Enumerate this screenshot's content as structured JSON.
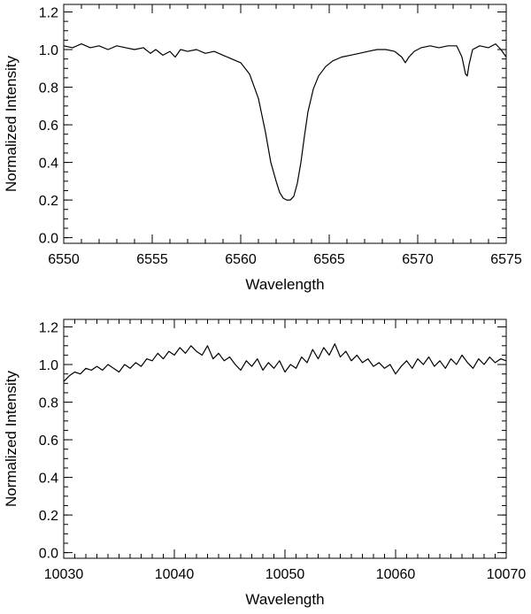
{
  "chart_data": [
    {
      "type": "line",
      "xlabel": "Wavelength",
      "ylabel": "Normalized Intensity",
      "xlim": [
        6550,
        6575
      ],
      "ylim": [
        -0.03,
        1.24
      ],
      "x_ticks": [
        6550,
        6555,
        6560,
        6565,
        6570,
        6575
      ],
      "x_tick_labels": [
        "6550",
        "6555",
        "6560",
        "6565",
        "6570",
        "6575"
      ],
      "x_minor_step": 1,
      "y_ticks": [
        0.0,
        0.2,
        0.4,
        0.6,
        0.8,
        1.0,
        1.2
      ],
      "y_tick_labels": [
        "0.0",
        "0.2",
        "0.4",
        "0.6",
        "0.8",
        "1.0",
        "1.2"
      ],
      "y_minor_step": 0.05,
      "grid": false,
      "series": [
        {
          "x": [
            6550.0,
            6550.5,
            6551.0,
            6551.5,
            6552.0,
            6552.5,
            6553.0,
            6553.5,
            6554.0,
            6554.5,
            6554.9,
            6555.2,
            6555.6,
            6556.0,
            6556.3,
            6556.6,
            6557.0,
            6557.5,
            6558.0,
            6558.5,
            6559.0,
            6559.5,
            6560.0,
            6560.5,
            6561.0,
            6561.4,
            6561.7,
            6562.0,
            6562.2,
            6562.4,
            6562.6,
            6562.8,
            6563.0,
            6563.2,
            6563.4,
            6563.6,
            6563.8,
            6564.1,
            6564.4,
            6564.8,
            6565.2,
            6565.7,
            6566.2,
            6566.7,
            6567.2,
            6567.7,
            6568.2,
            6568.7,
            6569.1,
            6569.3,
            6569.5,
            6569.8,
            6570.2,
            6570.7,
            6571.2,
            6571.7,
            6572.2,
            6572.5,
            6572.7,
            6572.8,
            6572.9,
            6573.1,
            6573.5,
            6574.0,
            6574.4,
            6574.7,
            6575.0
          ],
          "y": [
            1.02,
            1.01,
            1.03,
            1.01,
            1.02,
            1.0,
            1.02,
            1.01,
            1.0,
            1.01,
            0.98,
            1.0,
            0.97,
            0.99,
            0.96,
            1.0,
            0.99,
            1.0,
            0.98,
            0.99,
            0.97,
            0.95,
            0.93,
            0.87,
            0.74,
            0.56,
            0.4,
            0.3,
            0.24,
            0.21,
            0.2,
            0.2,
            0.22,
            0.29,
            0.4,
            0.54,
            0.67,
            0.79,
            0.86,
            0.91,
            0.94,
            0.96,
            0.97,
            0.98,
            0.99,
            1.0,
            1.0,
            0.99,
            0.96,
            0.93,
            0.96,
            0.99,
            1.01,
            1.02,
            1.01,
            1.02,
            1.02,
            0.96,
            0.87,
            0.86,
            0.92,
            1.0,
            1.02,
            1.01,
            1.03,
            1.0,
            0.96
          ]
        }
      ]
    },
    {
      "type": "line",
      "xlabel": "Wavelength",
      "ylabel": "Normalized Intensity",
      "xlim": [
        10030,
        10070
      ],
      "ylim": [
        -0.03,
        1.24
      ],
      "x_ticks": [
        10030,
        10040,
        10050,
        10060,
        10070
      ],
      "x_tick_labels": [
        "10030",
        "10040",
        "10050",
        "10060",
        "10070"
      ],
      "x_minor_step": 1,
      "y_ticks": [
        0.0,
        0.2,
        0.4,
        0.6,
        0.8,
        1.0,
        1.2
      ],
      "y_tick_labels": [
        "0.0",
        "0.2",
        "0.4",
        "0.6",
        "0.8",
        "1.0",
        "1.2"
      ],
      "y_minor_step": 0.05,
      "grid": false,
      "series": [
        {
          "x": [
            10030.0,
            10030.5,
            10031.0,
            10031.5,
            10032.0,
            10032.5,
            10033.0,
            10033.5,
            10034.0,
            10034.5,
            10035.0,
            10035.5,
            10036.0,
            10036.5,
            10037.0,
            10037.5,
            10038.0,
            10038.5,
            10039.0,
            10039.5,
            10040.0,
            10040.5,
            10041.0,
            10041.5,
            10042.0,
            10042.5,
            10043.0,
            10043.5,
            10044.0,
            10044.5,
            10045.0,
            10045.5,
            10046.0,
            10046.5,
            10047.0,
            10047.5,
            10048.0,
            10048.5,
            10049.0,
            10049.5,
            10050.0,
            10050.5,
            10051.0,
            10051.5,
            10052.0,
            10052.5,
            10053.0,
            10053.5,
            10054.0,
            10054.5,
            10055.0,
            10055.5,
            10056.0,
            10056.5,
            10057.0,
            10057.5,
            10058.0,
            10058.5,
            10059.0,
            10059.5,
            10060.0,
            10060.5,
            10061.0,
            10061.5,
            10062.0,
            10062.5,
            10063.0,
            10063.5,
            10064.0,
            10064.5,
            10065.0,
            10065.5,
            10066.0,
            10066.5,
            10067.0,
            10067.5,
            10068.0,
            10068.5,
            10069.0,
            10069.5,
            10070.0
          ],
          "y": [
            0.91,
            0.94,
            0.96,
            0.95,
            0.98,
            0.97,
            0.99,
            0.97,
            1.0,
            0.98,
            0.96,
            1.0,
            0.98,
            1.01,
            0.99,
            1.03,
            1.02,
            1.06,
            1.03,
            1.07,
            1.05,
            1.09,
            1.06,
            1.1,
            1.07,
            1.05,
            1.1,
            1.03,
            1.06,
            1.02,
            1.04,
            1.0,
            0.97,
            1.02,
            0.99,
            1.03,
            0.97,
            1.01,
            0.98,
            1.02,
            0.96,
            1.0,
            0.98,
            1.04,
            1.01,
            1.08,
            1.03,
            1.09,
            1.05,
            1.11,
            1.04,
            1.07,
            1.02,
            1.05,
            1.01,
            1.03,
            0.99,
            1.01,
            0.98,
            1.0,
            0.95,
            0.99,
            1.02,
            0.98,
            1.03,
            1.0,
            1.04,
            0.99,
            1.02,
            0.98,
            1.03,
            1.0,
            1.05,
            1.01,
            0.98,
            1.03,
            1.0,
            1.04,
            1.01,
            1.03,
            1.02
          ]
        }
      ]
    }
  ]
}
